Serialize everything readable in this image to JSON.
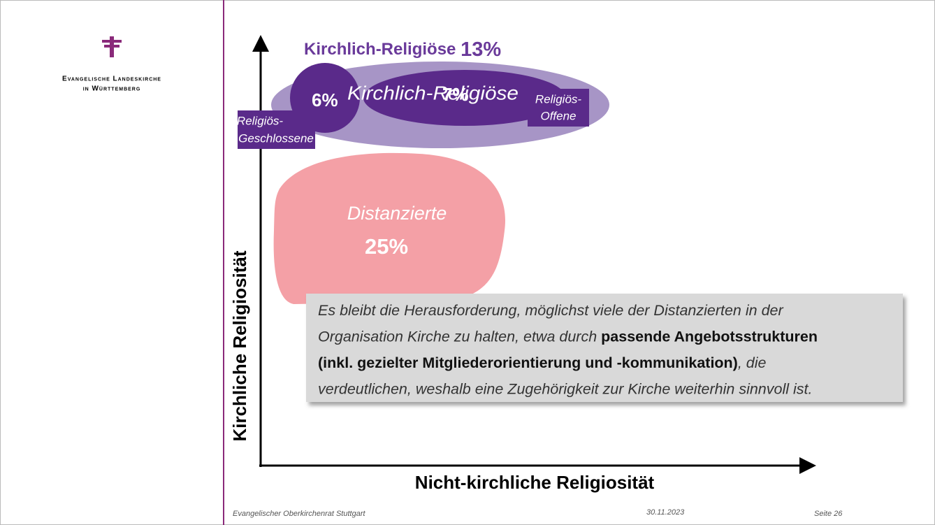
{
  "logo": {
    "line1": "Evangelische Landeskirche",
    "line2": "in Württemberg"
  },
  "diagram": {
    "group_title": "Kirchlich-Religiöse",
    "group_share": "13%",
    "closed_share": "6%",
    "inner_title": "Kirchlich-Religiöse",
    "open_share": "7%",
    "open_label": [
      "Religiös-",
      "Offene"
    ],
    "closed_label": [
      "Religiös-",
      "Geschlossene"
    ],
    "distant_title": "Distanzierte",
    "distant_share": "25%",
    "y_axis": "Kirchliche Religiosität",
    "x_axis": "Nicht-kirchliche Religiosität"
  },
  "callout": {
    "lines": [
      [
        {
          "text": "Es bleibt die Herausforderung, möglichst viele der Distanzierten in der",
          "bold": false
        }
      ],
      [
        {
          "text": "Organisation Kirche zu halten, etwa durch ",
          "bold": false
        },
        {
          "text": "passende Angebotsstrukturen",
          "bold": true
        }
      ],
      [
        {
          "text": "(inkl. gezielter Mitgliederorientierung und -kommunikation)",
          "bold": true
        },
        {
          "text": ", die",
          "bold": false
        }
      ],
      [
        {
          "text": "verdeutlichen, weshalb eine Zugehörigkeit zur Kirche weiterhin sinnvoll ist.",
          "bold": false
        }
      ]
    ]
  },
  "footer": {
    "organisation": "Evangelischer Oberkirchenrat Stuttgart",
    "date": "30.11.2023",
    "page": "Seite 26"
  }
}
